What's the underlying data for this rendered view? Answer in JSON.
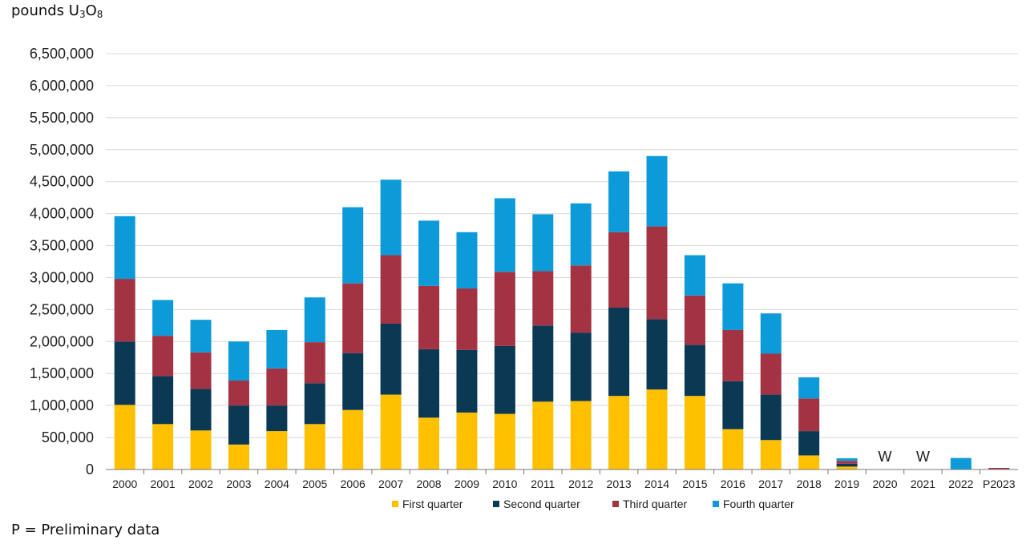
{
  "header": {
    "unit_prefix": "pounds U",
    "unit_sub1": "3",
    "unit_mid": "O",
    "unit_sub2": "8"
  },
  "footnote": "P = Preliminary data",
  "chart_data": {
    "type": "bar",
    "stacked": true,
    "ylabel": "pounds U3O8",
    "ylim": [
      0,
      6500000
    ],
    "y_ticks": [
      0,
      500000,
      1000000,
      1500000,
      2000000,
      2500000,
      3000000,
      3500000,
      4000000,
      4500000,
      5000000,
      5500000,
      6000000,
      6500000
    ],
    "y_tick_labels": [
      "0",
      "500,000",
      "1,000,000",
      "1,500,000",
      "2,000,000",
      "2,500,000",
      "3,000,000",
      "3,500,000",
      "4,000,000",
      "4,500,000",
      "5,000,000",
      "5,500,000",
      "6,000,000",
      "6,500,000"
    ],
    "grid": true,
    "legend_position": "bottom",
    "categories": [
      "2000",
      "2001",
      "2002",
      "2003",
      "2004",
      "2005",
      "2006",
      "2007",
      "2008",
      "2009",
      "2010",
      "2011",
      "2012",
      "2013",
      "2014",
      "2015",
      "2016",
      "2017",
      "2018",
      "2019",
      "2020",
      "2021",
      "2022",
      "P2023"
    ],
    "series": [
      {
        "name": "First quarter",
        "color": "#FFC000",
        "values": [
          1010000,
          710000,
          610000,
          390000,
          600000,
          710000,
          930000,
          1170000,
          810000,
          890000,
          870000,
          1060000,
          1070000,
          1150000,
          1250000,
          1150000,
          630000,
          460000,
          220000,
          45000,
          null,
          null,
          0,
          0
        ]
      },
      {
        "name": "Second quarter",
        "color": "#0B3954",
        "values": [
          990000,
          750000,
          650000,
          610000,
          400000,
          640000,
          890000,
          1110000,
          1070000,
          980000,
          1060000,
          1190000,
          1070000,
          1380000,
          1100000,
          800000,
          750000,
          710000,
          380000,
          45000,
          null,
          null,
          0,
          0
        ]
      },
      {
        "name": "Third quarter",
        "color": "#A33343",
        "values": [
          980000,
          630000,
          570000,
          390000,
          580000,
          640000,
          1090000,
          1070000,
          990000,
          960000,
          1160000,
          850000,
          1050000,
          1180000,
          1450000,
          770000,
          800000,
          640000,
          510000,
          45000,
          null,
          null,
          0,
          25000
        ]
      },
      {
        "name": "Fourth quarter",
        "color": "#0C9BD8",
        "values": [
          980000,
          560000,
          510000,
          610000,
          600000,
          700000,
          1190000,
          1180000,
          1020000,
          880000,
          1150000,
          890000,
          970000,
          950000,
          1100000,
          630000,
          730000,
          630000,
          330000,
          40000,
          null,
          null,
          180000,
          0
        ]
      }
    ],
    "annotations": [
      {
        "category": "2020",
        "text": "W"
      },
      {
        "category": "2021",
        "text": "W"
      }
    ]
  }
}
